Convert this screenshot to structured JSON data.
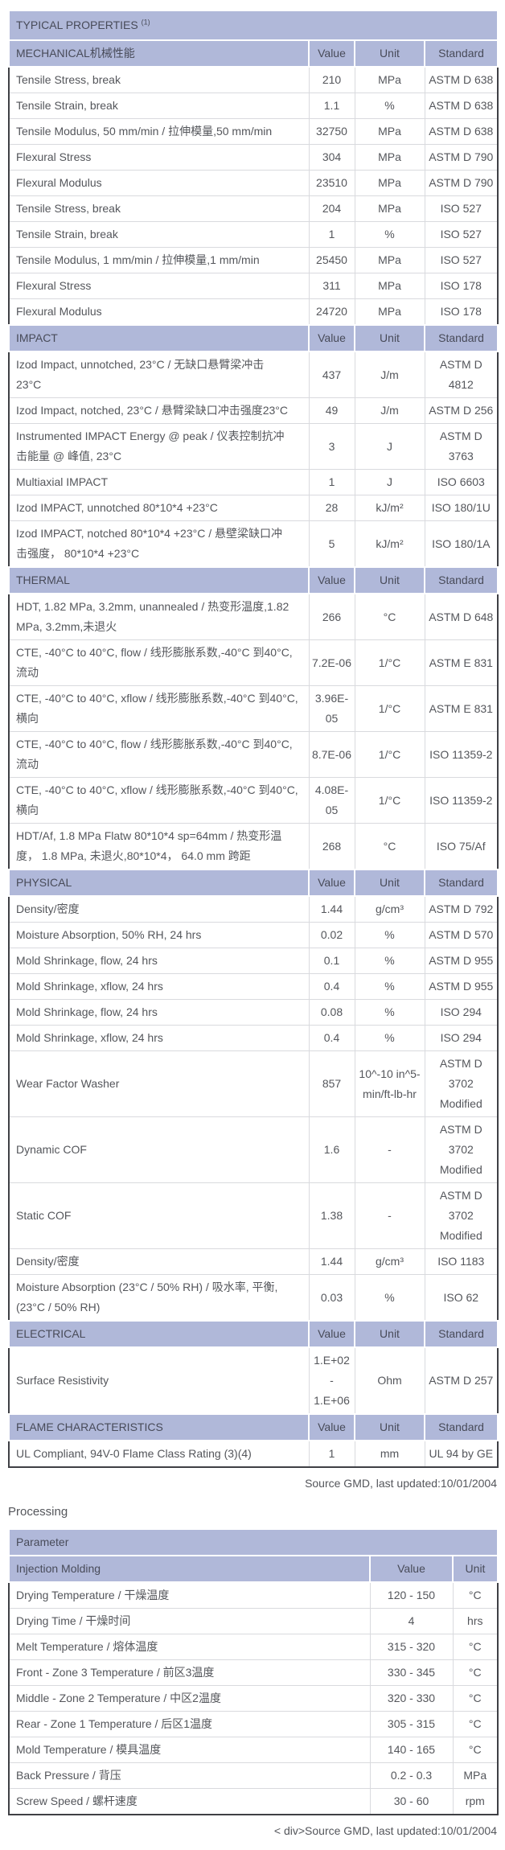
{
  "colors": {
    "header_background": "#b0b8d9",
    "header_text": "#484b59",
    "body_text": "#54565b",
    "outer_border": "#3f4045",
    "row_border": "#d9dade",
    "page_background": "#ffffff"
  },
  "page": {
    "source_note_1": "Source GMD, last updated:10/01/2004",
    "processing_heading": "Processing",
    "source_note_2": "< div>Source GMD, last updated:10/01/2004"
  },
  "properties_table": {
    "title": "TYPICAL PROPERTIES ",
    "title_sup": "(1)",
    "columns": [
      "Value",
      "Unit",
      "Standard"
    ],
    "sections": [
      {
        "name": "MECHANICAL机械性能",
        "rows": [
          [
            "Tensile Stress, break",
            "210",
            "MPa",
            "ASTM D 638"
          ],
          [
            "Tensile Strain, break",
            "1.1",
            "%",
            "ASTM D 638"
          ],
          [
            "Tensile Modulus, 50 mm/min / 拉伸模量,50 mm/min",
            "32750",
            "MPa",
            "ASTM D 638"
          ],
          [
            "Flexural Stress",
            "304",
            "MPa",
            "ASTM D 790"
          ],
          [
            "Flexural Modulus",
            "23510",
            "MPa",
            "ASTM D 790"
          ],
          [
            "Tensile Stress, break",
            "204",
            "MPa",
            "ISO 527"
          ],
          [
            "Tensile Strain, break",
            "1",
            "%",
            "ISO 527"
          ],
          [
            "Tensile Modulus, 1 mm/min / 拉伸模量,1 mm/min",
            "25450",
            "MPa",
            "ISO 527"
          ],
          [
            "Flexural Stress",
            "311",
            "MPa",
            "ISO 178"
          ],
          [
            "Flexural Modulus",
            "24720",
            "MPa",
            "ISO 178"
          ]
        ]
      },
      {
        "name": "IMPACT",
        "rows": [
          [
            "Izod Impact, unnotched, 23°C / 无缺口悬臂梁冲击\n23°C",
            "437",
            "J/m",
            "ASTM D 4812"
          ],
          [
            "Izod Impact, notched, 23°C / 悬臂梁缺口冲击强度23°C",
            "49",
            "J/m",
            "ASTM D 256"
          ],
          [
            "Instrumented IMPACT Energy @ peak / 仪表控制抗冲\n击能量 @ 峰值, 23°C",
            "3",
            "J",
            "ASTM D\n3763"
          ],
          [
            "Multiaxial IMPACT",
            "1",
            "J",
            "ISO 6603"
          ],
          [
            "Izod IMPACT, unnotched 80*10*4 +23°C",
            "28",
            "kJ/m²",
            "ISO 180/1U"
          ],
          [
            "Izod IMPACT, notched 80*10*4 +23°C / 悬壁梁缺口冲\n击强度， 80*10*4 +23°C",
            "5",
            "kJ/m²",
            "ISO 180/1A"
          ]
        ]
      },
      {
        "name": "THERMAL",
        "rows": [
          [
            "HDT, 1.82 MPa, 3.2mm, unannealed / 热变形温度,1.82\nMPa, 3.2mm,未退火",
            "266",
            "°C",
            "ASTM D 648"
          ],
          [
            "CTE, -40°C to 40°C, flow / 线形膨胀系数,-40°C 到40°C,\n流动",
            "7.2E-06",
            "1/°C",
            "ASTM E 831"
          ],
          [
            "CTE, -40°C to 40°C, xflow / 线形膨胀系数,-40°C 到40°C,\n横向",
            "3.96E-\n05",
            "1/°C",
            "ASTM E 831"
          ],
          [
            "CTE, -40°C to 40°C, flow / 线形膨胀系数,-40°C 到40°C,\n流动",
            "8.7E-06",
            "1/°C",
            "ISO 11359-2"
          ],
          [
            "CTE, -40°C to 40°C, xflow / 线形膨胀系数,-40°C 到40°C,\n横向",
            "4.08E-\n05",
            "1/°C",
            "ISO 11359-2"
          ],
          [
            "HDT/Af, 1.8 MPa Flatw 80*10*4 sp=64mm / 热变形温\n度， 1.8 MPa, 未退火,80*10*4， 64.0 mm 跨距",
            "268",
            "°C",
            "ISO 75/Af"
          ]
        ]
      },
      {
        "name": "PHYSICAL",
        "rows": [
          [
            "Density/密度",
            "1.44",
            "g/cm³",
            "ASTM D 792"
          ],
          [
            "Moisture Absorption, 50% RH, 24 hrs",
            "0.02",
            "%",
            "ASTM D 570"
          ],
          [
            "Mold Shrinkage, flow, 24 hrs",
            "0.1",
            "%",
            "ASTM D 955"
          ],
          [
            "Mold Shrinkage, xflow, 24 hrs",
            "0.4",
            "%",
            "ASTM D 955"
          ],
          [
            "Mold Shrinkage, flow, 24 hrs",
            "0.08",
            "%",
            "ISO 294"
          ],
          [
            "Mold Shrinkage, xflow, 24 hrs",
            "0.4",
            "%",
            "ISO 294"
          ],
          [
            "Wear Factor Washer",
            "857",
            "10^-10 in^5-\nmin/ft-lb-hr",
            "ASTM D\n3702\nModified"
          ],
          [
            "Dynamic COF",
            "1.6",
            "-",
            "ASTM D\n3702\nModified"
          ],
          [
            "Static COF",
            "1.38",
            "-",
            "ASTM D\n3702\nModified"
          ],
          [
            "Density/密度",
            "1.44",
            "g/cm³",
            "ISO 1183"
          ],
          [
            "Moisture Absorption (23°C / 50% RH) / 吸水率, 平衡,\n(23°C / 50% RH)",
            "0.03",
            "%",
            "ISO 62"
          ]
        ]
      },
      {
        "name": "ELECTRICAL",
        "rows": [
          [
            "Surface Resistivity",
            "1.E+02 -\n1.E+06",
            "Ohm",
            "ASTM D 257"
          ]
        ]
      },
      {
        "name": "FLAME CHARACTERISTICS",
        "rows": [
          [
            "UL Compliant, 94V-0 Flame Class Rating (3)(4)",
            "1",
            "mm",
            "UL 94 by GE"
          ]
        ]
      }
    ]
  },
  "processing_table": {
    "title": "Parameter",
    "subheader": "Injection Molding",
    "columns": [
      "Value",
      "Unit"
    ],
    "rows": [
      [
        "Drying Temperature / 干燥温度",
        "120 - 150",
        "°C"
      ],
      [
        "Drying Time / 干燥时间",
        "4",
        "hrs"
      ],
      [
        "Melt Temperature / 熔体温度",
        "315 - 320",
        "°C"
      ],
      [
        "Front - Zone 3 Temperature / 前区3温度",
        "330 - 345",
        "°C"
      ],
      [
        "Middle - Zone 2 Temperature / 中区2温度",
        "320 - 330",
        "°C"
      ],
      [
        "Rear - Zone 1 Temperature / 后区1温度",
        "305 - 315",
        "°C"
      ],
      [
        "Mold Temperature / 模具温度",
        "140 - 165",
        "°C"
      ],
      [
        "Back Pressure / 背压",
        "0.2 - 0.3",
        "MPa"
      ],
      [
        "Screw Speed / 螺杆速度",
        "30 - 60",
        "rpm"
      ]
    ]
  }
}
